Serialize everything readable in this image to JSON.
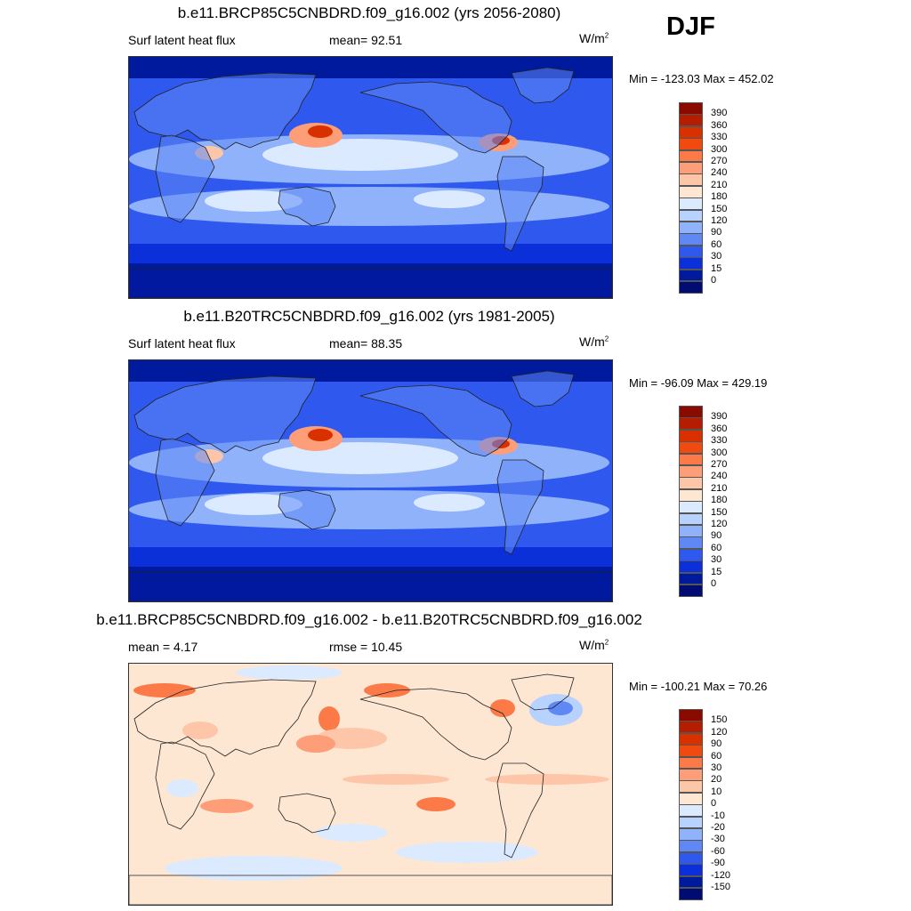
{
  "season": "DJF",
  "panels": [
    {
      "title": "b.e11.BRCP85C5CNBDRD.f09_g16.002 (yrs 2056-2080)",
      "left_label": "Surf latent heat flux",
      "stat_label": "mean=  92.51",
      "units": "W/m",
      "units_sup": "2",
      "minmax": "Min = -123.03 Max = 452.02",
      "colorbar": {
        "labels": [
          "390",
          "360",
          "330",
          "300",
          "270",
          "240",
          "210",
          "180",
          "150",
          "120",
          "90",
          "60",
          "30",
          "15",
          "0"
        ],
        "colors": [
          "#8b0a00",
          "#b51d00",
          "#d93000",
          "#f04a10",
          "#fb7a48",
          "#fd9e78",
          "#fdc6a8",
          "#fde6d2",
          "#dceaff",
          "#b8d2ff",
          "#8fb2fb",
          "#5f88f5",
          "#2f58ee",
          "#0b2fd8",
          "#001a9e",
          "#000c72"
        ]
      },
      "map_style": "seasonal"
    },
    {
      "title": "b.e11.B20TRC5CNBDRD.f09_g16.002 (yrs 1981-2005)",
      "left_label": "Surf latent heat flux",
      "stat_label": "mean=  88.35",
      "units": "W/m",
      "units_sup": "2",
      "minmax": "Min = -96.09 Max = 429.19",
      "colorbar": {
        "labels": [
          "390",
          "360",
          "330",
          "300",
          "270",
          "240",
          "210",
          "180",
          "150",
          "120",
          "90",
          "60",
          "30",
          "15",
          "0"
        ],
        "colors": [
          "#8b0a00",
          "#b51d00",
          "#d93000",
          "#f04a10",
          "#fb7a48",
          "#fd9e78",
          "#fdc6a8",
          "#fde6d2",
          "#dceaff",
          "#b8d2ff",
          "#8fb2fb",
          "#5f88f5",
          "#2f58ee",
          "#0b2fd8",
          "#001a9e",
          "#000c72"
        ]
      },
      "map_style": "seasonal"
    },
    {
      "title": "b.e11.BRCP85C5CNBDRD.f09_g16.002 - b.e11.B20TRC5CNBDRD.f09_g16.002",
      "left_label": "mean =   4.17",
      "stat_label": "rmse =  10.45",
      "units": "W/m",
      "units_sup": "2",
      "minmax": "Min = -100.21 Max =  70.26",
      "colorbar": {
        "labels": [
          "150",
          "120",
          "90",
          "60",
          "30",
          "20",
          "10",
          "0",
          "-10",
          "-20",
          "-30",
          "-60",
          "-90",
          "-120",
          "-150"
        ],
        "colors": [
          "#8b0a00",
          "#b51d00",
          "#d93000",
          "#f04a10",
          "#fb7a48",
          "#fd9e78",
          "#fdc6a8",
          "#fde6d2",
          "#dceaff",
          "#b8d2ff",
          "#8fb2fb",
          "#5f88f5",
          "#2f58ee",
          "#0b2fd8",
          "#001a9e",
          "#000c72"
        ]
      },
      "map_style": "difference"
    }
  ]
}
